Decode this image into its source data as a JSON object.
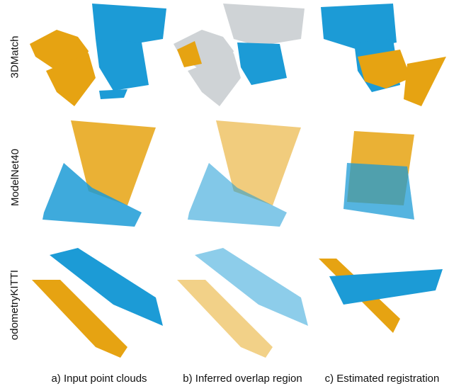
{
  "rows": [
    {
      "label": "3DMatch"
    },
    {
      "label": "ModelNet40"
    },
    {
      "label": "odometryKITTI"
    }
  ],
  "captions": [
    "a) Input point clouds",
    "b) Inferred overlap region",
    "c) Estimated registration"
  ],
  "colors": {
    "source": "#e6a312",
    "target": "#1c9bd6",
    "faded": "#cfd3d6"
  }
}
